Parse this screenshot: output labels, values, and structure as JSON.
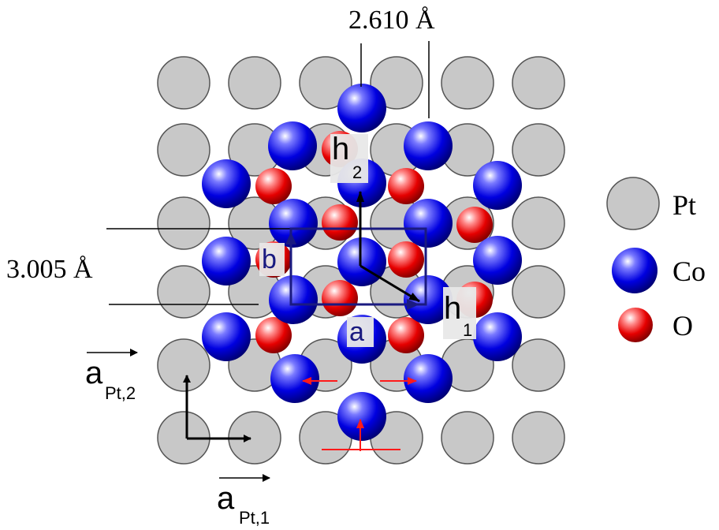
{
  "labels": {
    "distance_top": "2.610 Å",
    "distance_left": "3.005 Å",
    "a": "a",
    "b": "b",
    "h1_base": "h",
    "h1_sub": "1",
    "h2_base": "h",
    "h2_sub": "2",
    "a_pt2_base": "a",
    "a_pt2_sub": "Pt,2",
    "a_pt1_base": "a",
    "a_pt1_sub": "Pt,1"
  },
  "legend": [
    {
      "label": "Pt",
      "species": "pt"
    },
    {
      "label": "Co",
      "species": "co"
    },
    {
      "label": "O",
      "species": "o"
    }
  ],
  "colors": {
    "pt_fill": "#c8c8c8",
    "co_core": "#0000e6",
    "o_core": "#e60000",
    "cell_frame": "#1a1a80",
    "displacement_arrow": "#ff1a1a"
  }
}
